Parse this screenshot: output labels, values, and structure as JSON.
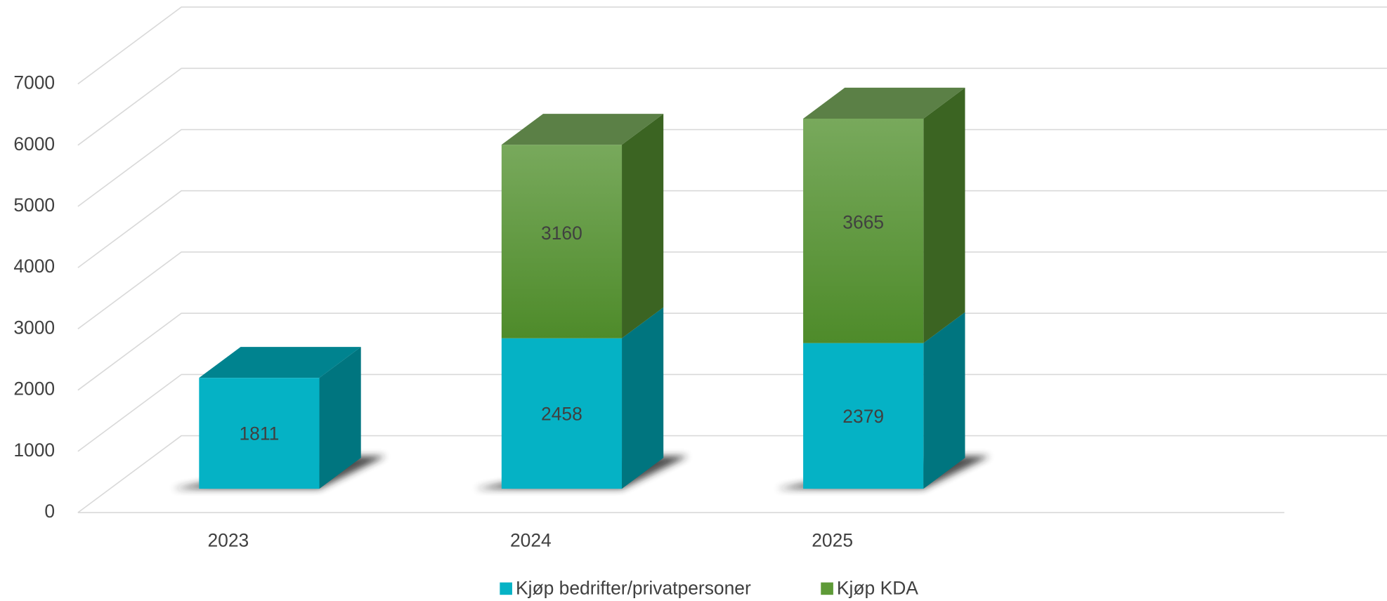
{
  "chart_data": {
    "type": "bar3d_stacked",
    "categories": [
      "2023",
      "2024",
      "2025"
    ],
    "series": [
      {
        "name": "Kjøp bedrifter/privatpersoner",
        "color": "#05b2c5",
        "values": [
          1811,
          2458,
          2379
        ]
      },
      {
        "name": "Kjøp KDA",
        "color": "#5e9a37",
        "values": [
          null,
          3160,
          3665
        ]
      }
    ],
    "ylim": [
      0,
      7000
    ],
    "yticks": [
      0,
      1000,
      2000,
      3000,
      4000,
      5000,
      6000,
      7000
    ],
    "grid": true,
    "legend": "bottom"
  }
}
